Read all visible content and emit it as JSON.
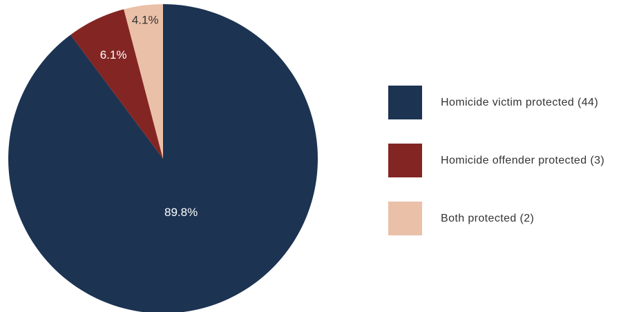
{
  "chart_data": {
    "type": "pie",
    "start_angle_deg": 0,
    "direction": "clockwise",
    "slices": [
      {
        "label": "Homicide victim protected (44)",
        "value": 44,
        "percent_label": "89.8%",
        "color": "#1c3352",
        "label_color": "#ffffff"
      },
      {
        "label": "Homicide offender protected (3)",
        "value": 3,
        "percent_label": "6.1%",
        "color": "#832623",
        "label_color": "#ffffff"
      },
      {
        "label": "Both protected (2)",
        "value": 2,
        "percent_label": "4.1%",
        "color": "#eac0a8",
        "label_color": "#333333"
      }
    ],
    "legend_placement": "right"
  }
}
